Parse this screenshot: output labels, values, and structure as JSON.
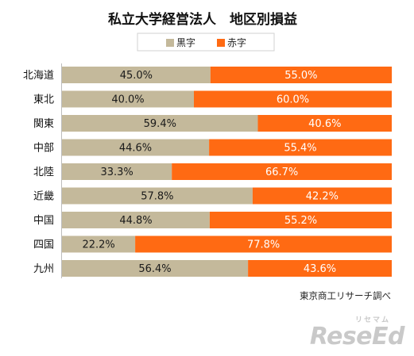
{
  "chart_data": {
    "type": "bar",
    "stacked": true,
    "orientation": "horizontal",
    "title": "私立大学経営法人　地区別損益",
    "categories": [
      "北海道",
      "東北",
      "関東",
      "中部",
      "北陸",
      "近畿",
      "中国",
      "四国",
      "九州"
    ],
    "series": [
      {
        "name": "黒字",
        "color": "#c4b99b",
        "values": [
          45.0,
          40.0,
          59.4,
          44.6,
          33.3,
          57.8,
          44.8,
          22.2,
          56.4
        ]
      },
      {
        "name": "赤字",
        "color": "#ff6a13",
        "values": [
          55.0,
          60.0,
          40.6,
          55.4,
          66.7,
          42.2,
          55.2,
          77.8,
          43.6
        ]
      }
    ],
    "value_labels": {
      "黒字": [
        "45.0%",
        "40.0%",
        "59.4%",
        "44.6%",
        "33.3%",
        "57.8%",
        "44.8%",
        "22.2%",
        "56.4%"
      ],
      "赤字": [
        "55.0%",
        "60.0%",
        "40.6%",
        "55.4%",
        "66.7%",
        "42.2%",
        "55.2%",
        "77.8%",
        "43.6%"
      ]
    },
    "xlim": [
      0,
      100
    ],
    "legend_position": "top",
    "grid": false,
    "source_note": "東京商工リサーチ調べ"
  },
  "watermark": {
    "sub": "リセマム",
    "main": "ReseEd"
  }
}
